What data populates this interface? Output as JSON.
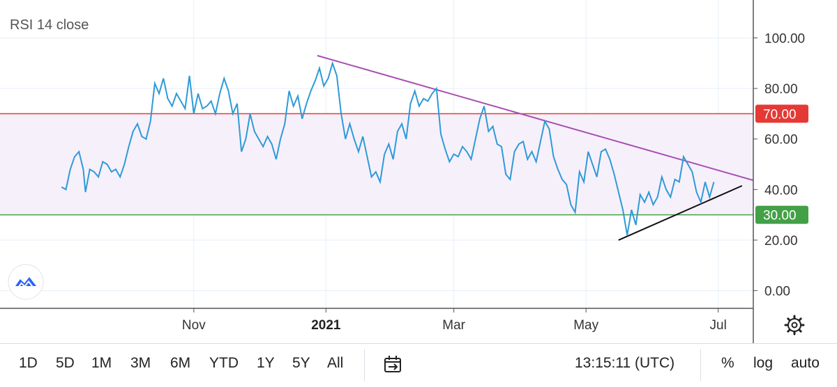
{
  "chart_data": {
    "type": "line",
    "title": "RSI 14 close",
    "y_ticks": [
      "100.00",
      "80.00",
      "60.00",
      "40.00",
      "20.00",
      "0.00"
    ],
    "y_tick_values": [
      100,
      80,
      60,
      40,
      20,
      0
    ],
    "ylim": [
      -7,
      115
    ],
    "x_ticks": [
      {
        "label": "Nov",
        "bold": false,
        "date": "2020-11-01"
      },
      {
        "label": "2021",
        "bold": true,
        "date": "2021-01-01"
      },
      {
        "label": "Mar",
        "bold": false,
        "date": "2021-03-01"
      },
      {
        "label": "May",
        "bold": false,
        "date": "2021-05-01"
      },
      {
        "label": "Jul",
        "bold": false,
        "date": "2021-07-01"
      }
    ],
    "overbought": {
      "value": 70,
      "label": "70.00",
      "color": "#e53935"
    },
    "oversold": {
      "value": 30,
      "label": "30.00",
      "color": "#43a047"
    },
    "band_color": "#f6f0fb",
    "series": [
      {
        "color": "#2e9ad8",
        "points": [
          [
            "2020-09-01",
            41
          ],
          [
            "2020-09-03",
            40
          ],
          [
            "2020-09-05",
            48
          ],
          [
            "2020-09-07",
            53
          ],
          [
            "2020-09-09",
            55
          ],
          [
            "2020-09-11",
            48
          ],
          [
            "2020-09-12",
            39
          ],
          [
            "2020-09-14",
            48
          ],
          [
            "2020-09-16",
            47
          ],
          [
            "2020-09-18",
            45
          ],
          [
            "2020-09-20",
            51
          ],
          [
            "2020-09-22",
            50
          ],
          [
            "2020-09-24",
            47
          ],
          [
            "2020-09-26",
            48
          ],
          [
            "2020-09-28",
            45
          ],
          [
            "2020-09-30",
            50
          ],
          [
            "2020-10-02",
            57
          ],
          [
            "2020-10-04",
            63
          ],
          [
            "2020-10-06",
            66
          ],
          [
            "2020-10-08",
            61
          ],
          [
            "2020-10-10",
            60
          ],
          [
            "2020-10-12",
            67
          ],
          [
            "2020-10-14",
            82
          ],
          [
            "2020-10-16",
            78
          ],
          [
            "2020-10-18",
            84
          ],
          [
            "2020-10-20",
            76
          ],
          [
            "2020-10-22",
            73
          ],
          [
            "2020-10-24",
            78
          ],
          [
            "2020-10-26",
            75
          ],
          [
            "2020-10-28",
            72
          ],
          [
            "2020-10-30",
            85
          ],
          [
            "2020-11-01",
            70
          ],
          [
            "2020-11-03",
            78
          ],
          [
            "2020-11-05",
            72
          ],
          [
            "2020-11-07",
            73
          ],
          [
            "2020-11-09",
            75
          ],
          [
            "2020-11-11",
            70
          ],
          [
            "2020-11-13",
            78
          ],
          [
            "2020-11-15",
            84
          ],
          [
            "2020-11-17",
            79
          ],
          [
            "2020-11-19",
            70
          ],
          [
            "2020-11-21",
            74
          ],
          [
            "2020-11-23",
            55
          ],
          [
            "2020-11-25",
            60
          ],
          [
            "2020-11-27",
            70
          ],
          [
            "2020-11-29",
            63
          ],
          [
            "2020-12-01",
            60
          ],
          [
            "2020-12-03",
            57
          ],
          [
            "2020-12-05",
            61
          ],
          [
            "2020-12-07",
            58
          ],
          [
            "2020-12-09",
            52
          ],
          [
            "2020-12-11",
            60
          ],
          [
            "2020-12-13",
            66
          ],
          [
            "2020-12-15",
            79
          ],
          [
            "2020-12-17",
            73
          ],
          [
            "2020-12-19",
            77
          ],
          [
            "2020-12-21",
            68
          ],
          [
            "2020-12-23",
            74
          ],
          [
            "2020-12-25",
            79
          ],
          [
            "2020-12-27",
            83
          ],
          [
            "2020-12-29",
            88
          ],
          [
            "2020-12-31",
            81
          ],
          [
            "2021-01-02",
            84
          ],
          [
            "2021-01-04",
            90
          ],
          [
            "2021-01-06",
            85
          ],
          [
            "2021-01-08",
            70
          ],
          [
            "2021-01-10",
            60
          ],
          [
            "2021-01-12",
            66
          ],
          [
            "2021-01-14",
            60
          ],
          [
            "2021-01-16",
            55
          ],
          [
            "2021-01-18",
            61
          ],
          [
            "2021-01-20",
            53
          ],
          [
            "2021-01-22",
            45
          ],
          [
            "2021-01-24",
            47
          ],
          [
            "2021-01-26",
            43
          ],
          [
            "2021-01-28",
            54
          ],
          [
            "2021-01-30",
            58
          ],
          [
            "2021-02-01",
            52
          ],
          [
            "2021-02-03",
            63
          ],
          [
            "2021-02-05",
            66
          ],
          [
            "2021-02-07",
            60
          ],
          [
            "2021-02-09",
            74
          ],
          [
            "2021-02-11",
            79
          ],
          [
            "2021-02-13",
            73
          ],
          [
            "2021-02-15",
            76
          ],
          [
            "2021-02-17",
            75
          ],
          [
            "2021-02-19",
            78
          ],
          [
            "2021-02-21",
            80
          ],
          [
            "2021-02-23",
            62
          ],
          [
            "2021-02-25",
            56
          ],
          [
            "2021-02-27",
            51
          ],
          [
            "2021-03-01",
            54
          ],
          [
            "2021-03-03",
            53
          ],
          [
            "2021-03-05",
            57
          ],
          [
            "2021-03-07",
            55
          ],
          [
            "2021-03-09",
            52
          ],
          [
            "2021-03-11",
            60
          ],
          [
            "2021-03-13",
            68
          ],
          [
            "2021-03-15",
            73
          ],
          [
            "2021-03-17",
            63
          ],
          [
            "2021-03-19",
            65
          ],
          [
            "2021-03-21",
            58
          ],
          [
            "2021-03-23",
            57
          ],
          [
            "2021-03-25",
            46
          ],
          [
            "2021-03-27",
            44
          ],
          [
            "2021-03-29",
            55
          ],
          [
            "2021-03-31",
            58
          ],
          [
            "2021-04-02",
            59
          ],
          [
            "2021-04-04",
            52
          ],
          [
            "2021-04-06",
            55
          ],
          [
            "2021-04-08",
            51
          ],
          [
            "2021-04-10",
            59
          ],
          [
            "2021-04-12",
            67
          ],
          [
            "2021-04-14",
            64
          ],
          [
            "2021-04-16",
            53
          ],
          [
            "2021-04-18",
            48
          ],
          [
            "2021-04-20",
            44
          ],
          [
            "2021-04-22",
            42
          ],
          [
            "2021-04-24",
            34
          ],
          [
            "2021-04-26",
            31
          ],
          [
            "2021-04-28",
            47
          ],
          [
            "2021-04-30",
            43
          ],
          [
            "2021-05-02",
            55
          ],
          [
            "2021-05-04",
            50
          ],
          [
            "2021-05-06",
            45
          ],
          [
            "2021-05-08",
            55
          ],
          [
            "2021-05-10",
            56
          ],
          [
            "2021-05-12",
            52
          ],
          [
            "2021-05-14",
            46
          ],
          [
            "2021-05-16",
            39
          ],
          [
            "2021-05-18",
            32
          ],
          [
            "2021-05-20",
            22
          ],
          [
            "2021-05-22",
            32
          ],
          [
            "2021-05-24",
            26
          ],
          [
            "2021-05-26",
            38
          ],
          [
            "2021-05-28",
            35
          ],
          [
            "2021-05-30",
            39
          ],
          [
            "2021-06-01",
            34
          ],
          [
            "2021-06-03",
            37
          ],
          [
            "2021-06-05",
            45
          ],
          [
            "2021-06-07",
            40
          ],
          [
            "2021-06-09",
            37
          ],
          [
            "2021-06-11",
            44
          ],
          [
            "2021-06-13",
            43
          ],
          [
            "2021-06-15",
            53
          ],
          [
            "2021-06-17",
            50
          ],
          [
            "2021-06-19",
            47
          ],
          [
            "2021-06-21",
            39
          ],
          [
            "2021-06-23",
            35
          ],
          [
            "2021-06-25",
            43
          ],
          [
            "2021-06-27",
            37
          ],
          [
            "2021-06-29",
            43
          ]
        ]
      }
    ],
    "trendlines": [
      {
        "color": "#a64fb2",
        "from": [
          "2020-12-28",
          93
        ],
        "to": [
          "2021-07-28",
          41
        ]
      },
      {
        "color": "#111111",
        "from": [
          "2021-05-16",
          20
        ],
        "to": [
          "2021-07-12",
          41.5
        ]
      }
    ]
  },
  "ui": {
    "logo_icon": "tradingview-logo-icon",
    "settings_icon": "gear-icon",
    "ranges": [
      "1D",
      "5D",
      "1M",
      "3M",
      "6M",
      "YTD",
      "1Y",
      "5Y",
      "All"
    ],
    "date_range_icon": "calendar-arrow-icon",
    "time": "13:15:11 (UTC)",
    "percent": "%",
    "log": "log",
    "auto": "auto"
  }
}
